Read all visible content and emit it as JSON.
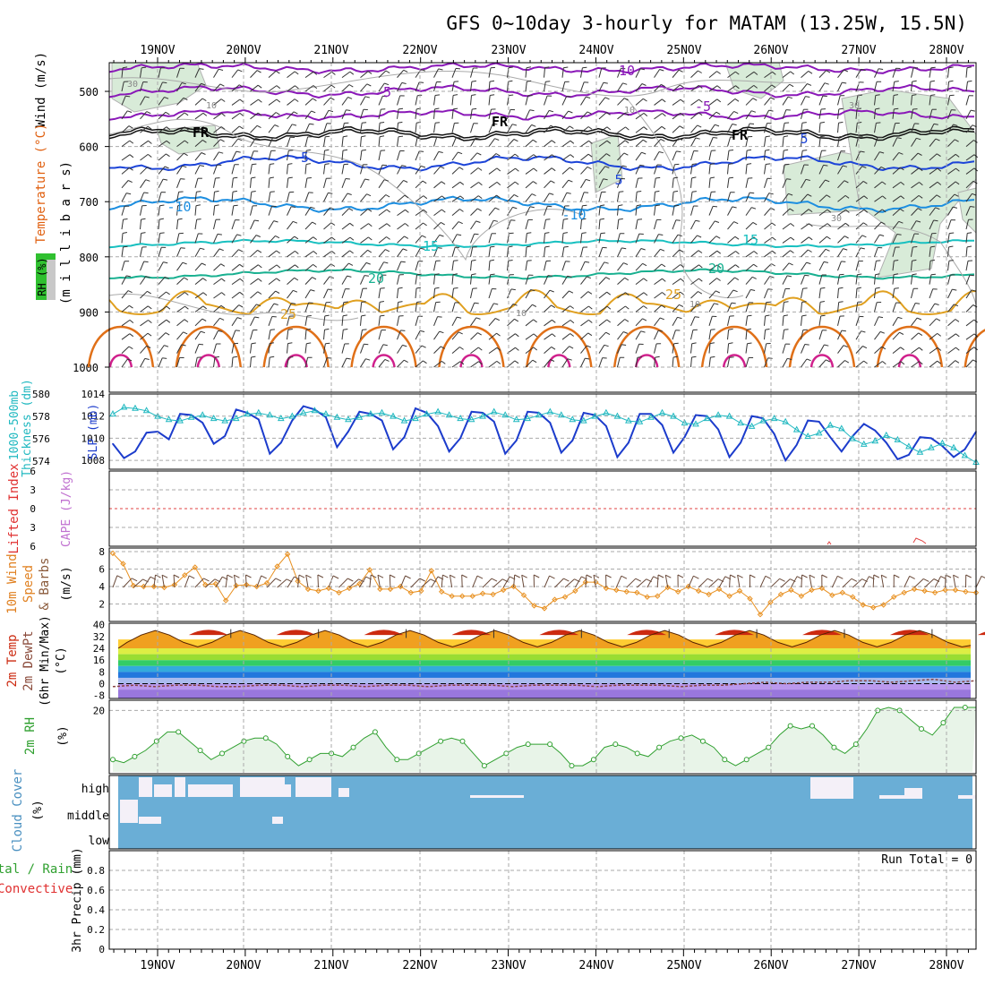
{
  "title": "GFS 0~10day 3-hourly for MATAM (13.25W, 15.5N)",
  "dates": [
    "19NOV",
    "20NOV",
    "21NOV",
    "22NOV",
    "23NOV",
    "24NOV",
    "25NOV",
    "26NOV",
    "27NOV",
    "28NOV"
  ],
  "colors": {
    "grid": "#aaaaaa",
    "purple": "#8a18b8",
    "blue": "#1c44d8",
    "lightblue": "#1c8ee0",
    "cyan": "#18c0c0",
    "teal": "#18b090",
    "orange": "#e0a020",
    "darkorange": "#e07018",
    "magenta": "#d0208c",
    "slp": "#1c3ccc",
    "thickness": "#20b8c0",
    "cloud": "#6aaed6",
    "wind10": "#e89020",
    "rh": "#30a030",
    "rhfill": "#e8f4e8"
  },
  "panels": {
    "upper": {
      "ylabels": [
        "Wind (m/s)",
        "Temperature (°C)",
        "(m i l l i b a r s)",
        "RH (%)"
      ],
      "yticks": [
        500,
        600,
        700,
        800,
        900,
        1000
      ],
      "contour_labels": [
        "10",
        "-5",
        "-5",
        "FR",
        "FR",
        "FR",
        "-5",
        "5",
        "5",
        "-10",
        "-10",
        "15",
        "15",
        "20",
        "20",
        "25",
        "25",
        "30",
        "30",
        "30",
        "10",
        "10",
        "10",
        "10"
      ]
    },
    "slp": {
      "ylabels": [
        "1000-500mb",
        "Thickness (dm)",
        "SLP (mb)"
      ],
      "left_ticks": [
        580,
        578,
        576,
        574
      ],
      "right_ticks": [
        1014,
        1012,
        1010,
        1008
      ]
    },
    "cape": {
      "ylabels": [
        "Lifted Index",
        "CAPE (J/kg)"
      ],
      "ticks": [
        -6,
        -3,
        0,
        3,
        6
      ]
    },
    "wind10": {
      "ylabels": [
        "10m Wind",
        "Speed",
        "& Barbs",
        "(m/s)"
      ],
      "ticks": [
        8,
        6,
        4,
        2
      ]
    },
    "temp2m": {
      "ylabels": [
        "2m Temp",
        "2m DewPt",
        "(6hr Min/Max)",
        "(°C)"
      ],
      "ticks": [
        40,
        32,
        24,
        16,
        8,
        0,
        -8
      ]
    },
    "rh2m": {
      "ylabels": [
        "2m RH",
        "(%)"
      ],
      "ticks": [
        20
      ]
    },
    "cloud": {
      "ylabels": [
        "Cloud Cover",
        "(%)"
      ],
      "levels": [
        "high",
        "middle",
        "low"
      ]
    },
    "precip": {
      "ylabels": [
        "Total / Rain",
        "Convective",
        "3hr Precip (mm)"
      ],
      "ticks": [
        "0.8",
        "0.6",
        "0.4",
        "0.2",
        "0"
      ],
      "run_total": "Run Total = 0"
    }
  },
  "chart_data": [
    {
      "type": "line",
      "panel": "slp",
      "series": [
        {
          "name": "SLP (mb)",
          "values": [
            1009.5,
            1008.2,
            1008.8,
            1010.5,
            1010.6,
            1009.9,
            1012.2,
            1012.1,
            1011.4,
            1009.5,
            1010.2,
            1012.6,
            1012.3,
            1011.7,
            1008.6,
            1009.6,
            1011.6,
            1012.9,
            1012.6,
            1011.9,
            1009.2,
            1010.6,
            1012.4,
            1012.2,
            1011.6,
            1009.0,
            1010.1,
            1012.7,
            1012.3,
            1011.1,
            1008.8,
            1010.0,
            1012.4,
            1012.3,
            1011.5,
            1008.6,
            1009.8,
            1012.4,
            1012.3,
            1011.4,
            1008.7,
            1009.8,
            1012.3,
            1012.1,
            1011.1,
            1008.3,
            1009.6,
            1012.2,
            1012.2,
            1011.2,
            1008.7,
            1010.1,
            1012.1,
            1012.0,
            1010.8,
            1008.3,
            1009.6,
            1012.0,
            1011.8,
            1010.4,
            1008.0,
            1009.4,
            1011.6,
            1011.5,
            1010.1,
            1008.8,
            1010.2,
            1011.3,
            1010.7,
            1009.6,
            1008.1,
            1008.5,
            1010.1,
            1010.0,
            1009.3,
            1008.3,
            1009.0,
            1010.6
          ]
        },
        {
          "name": "1000-500mb Thickness (dm)",
          "values": [
            578.2,
            578.8,
            578.7,
            578.5,
            578.0,
            577.7,
            577.6,
            577.9,
            578.1,
            577.8,
            577.6,
            577.8,
            578.2,
            578.3,
            578.1,
            577.8,
            578.0,
            578.3,
            578.5,
            578.2,
            577.9,
            577.7,
            577.9,
            578.2,
            578.3,
            578.0,
            577.6,
            577.8,
            578.2,
            578.4,
            578.1,
            577.8,
            577.7,
            578.0,
            578.4,
            578.1,
            577.7,
            577.8,
            578.1,
            578.4,
            578.1,
            577.7,
            577.6,
            578.0,
            578.3,
            578.0,
            577.6,
            577.5,
            577.9,
            578.3,
            578.0,
            577.4,
            577.3,
            577.8,
            578.1,
            578.0,
            577.4,
            577.1,
            577.6,
            577.8,
            577.5,
            576.8,
            576.2,
            576.5,
            577.2,
            576.9,
            576.0,
            575.5,
            575.8,
            576.3,
            575.9,
            575.3,
            574.8,
            575.2,
            575.6,
            575.2,
            574.5,
            573.9
          ]
        }
      ]
    },
    {
      "type": "line",
      "panel": "wind10",
      "series": [
        {
          "name": "10m Wind Speed (m/s)",
          "values": [
            7.8,
            6.6,
            4.1,
            4.0,
            4.0,
            3.9,
            4.2,
            5.3,
            6.2,
            4.2,
            4.3,
            2.4,
            4.1,
            4.2,
            4.0,
            4.4,
            6.3,
            7.7,
            4.6,
            3.7,
            3.5,
            3.8,
            3.3,
            3.8,
            4.3,
            5.9,
            3.7,
            3.7,
            4.0,
            3.3,
            3.5,
            5.8,
            3.4,
            2.9,
            2.9,
            2.9,
            3.2,
            3.1,
            3.6,
            4.0,
            3.0,
            1.8,
            1.5,
            2.5,
            2.8,
            3.5,
            4.5,
            4.5,
            3.8,
            3.6,
            3.4,
            3.3,
            2.8,
            2.9,
            3.9,
            3.4,
            4.0,
            3.5,
            3.1,
            3.7,
            2.9,
            3.5,
            2.6,
            0.8,
            2.2,
            3.1,
            3.6,
            2.9,
            3.6,
            3.8,
            3.0,
            3.3,
            2.8,
            1.9,
            1.6,
            1.9,
            2.8,
            3.3,
            3.7,
            3.5,
            3.3,
            3.6,
            3.6,
            3.4,
            3.3
          ]
        }
      ]
    },
    {
      "type": "area",
      "panel": "temp2m",
      "series": [
        {
          "name": "2m Temp (°C)",
          "values": [
            24,
            28,
            33,
            36,
            33,
            28,
            25,
            28,
            33,
            36,
            33,
            28,
            25,
            28,
            33,
            36,
            33,
            28,
            25,
            28,
            33,
            36,
            33,
            28,
            25,
            28,
            33,
            36,
            33,
            28,
            25,
            28,
            33,
            36,
            33,
            28,
            25,
            28,
            33,
            36,
            33,
            28,
            25,
            28,
            33,
            36,
            33,
            28,
            25,
            28,
            33,
            36,
            33,
            28,
            25,
            28,
            33,
            36,
            33,
            28,
            25,
            26
          ]
        },
        {
          "name": "2m DewPt (°C)",
          "values": [
            -2,
            -1,
            -2,
            -1,
            -1,
            -2,
            -2,
            -1,
            -1,
            -2,
            -1,
            -1,
            -2,
            -1,
            -1,
            -2,
            -1,
            -1,
            -1,
            -2,
            -1,
            -1,
            -1,
            -2,
            -1,
            -1,
            -1,
            -2,
            -1,
            -1,
            0,
            1,
            0,
            1,
            1,
            2,
            2,
            1,
            2,
            3,
            1,
            2
          ]
        }
      ]
    },
    {
      "type": "line",
      "panel": "rh2m",
      "series": [
        {
          "name": "2m RH (%)",
          "values": [
            4,
            3,
            5,
            7,
            10,
            13,
            13,
            10,
            7,
            4,
            6,
            8,
            10,
            11,
            11,
            9,
            5,
            2,
            4,
            6,
            6,
            5,
            8,
            11,
            13,
            8,
            4,
            4,
            6,
            8,
            10,
            11,
            10,
            6,
            2,
            4,
            6,
            8,
            9,
            9,
            9,
            6,
            2,
            2,
            4,
            8,
            9,
            8,
            6,
            5,
            8,
            10,
            11,
            12,
            10,
            8,
            4,
            2,
            4,
            6,
            8,
            12,
            15,
            14,
            15,
            12,
            8,
            6,
            9,
            14,
            20,
            21,
            20,
            17,
            14,
            12,
            16,
            21,
            21,
            21
          ]
        }
      ]
    }
  ]
}
